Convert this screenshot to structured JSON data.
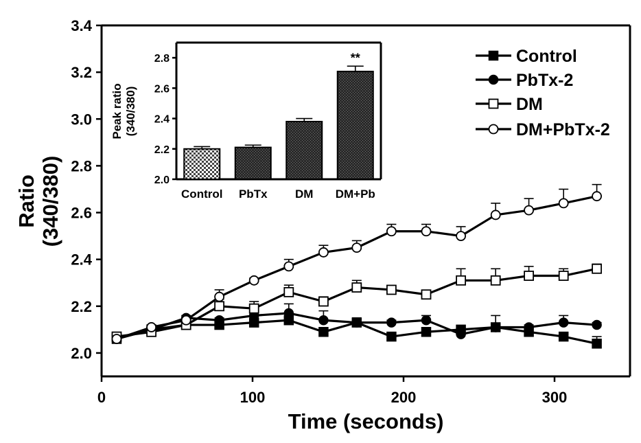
{
  "chart_data": [
    {
      "type": "line",
      "xlabel": "Time (seconds)",
      "ylabel_line1": "Ratio",
      "ylabel_line2": "(340/380)",
      "xlim": [
        0,
        350
      ],
      "ylim": [
        1.9,
        3.4
      ],
      "xticks": [
        0,
        100,
        200,
        300
      ],
      "xtick_labels": [
        "0",
        "100",
        "200",
        "300"
      ],
      "yticks": [
        2.0,
        2.2,
        2.4,
        2.6,
        2.8,
        3.0,
        3.2,
        3.4
      ],
      "ytick_labels": [
        "2.0",
        "2.2",
        "2.4",
        "2.6",
        "2.8",
        "3.0",
        "3.2",
        "3.4"
      ],
      "x": [
        10,
        33,
        56,
        78,
        101,
        124,
        147,
        169,
        192,
        215,
        238,
        261,
        283,
        306,
        328
      ],
      "series": [
        {
          "name": "Control",
          "marker": "filled-square",
          "values": [
            2.06,
            2.1,
            2.12,
            2.12,
            2.13,
            2.14,
            2.09,
            2.13,
            2.07,
            2.09,
            2.1,
            2.11,
            2.09,
            2.07,
            2.04
          ],
          "errors": [
            0.01,
            0.01,
            0.01,
            0.01,
            0.01,
            0.01,
            0.01,
            0.01,
            0.005,
            0.01,
            0.01,
            0.01,
            0.01,
            0.01,
            0.03
          ]
        },
        {
          "name": "PbTx-2",
          "marker": "filled-circle",
          "values": [
            2.06,
            2.1,
            2.15,
            2.14,
            2.16,
            2.17,
            2.14,
            2.13,
            2.13,
            2.14,
            2.08,
            2.11,
            2.11,
            2.13,
            2.12
          ],
          "errors": [
            0.01,
            0.01,
            0.01,
            0.01,
            0.02,
            0.04,
            0.04,
            0.02,
            0.01,
            0.02,
            0.02,
            0.05,
            0.01,
            0.03,
            0.01
          ]
        },
        {
          "name": "DM",
          "marker": "open-square",
          "values": [
            2.07,
            2.09,
            2.12,
            2.2,
            2.19,
            2.26,
            2.22,
            2.28,
            2.27,
            2.25,
            2.31,
            2.31,
            2.33,
            2.33,
            2.36
          ],
          "errors": [
            0.01,
            0.01,
            0.01,
            0.03,
            0.03,
            0.03,
            0.02,
            0.03,
            0.01,
            0.01,
            0.05,
            0.05,
            0.04,
            0.03,
            0.02
          ]
        },
        {
          "name": "DM+PbTx-2",
          "marker": "open-circle",
          "values": [
            2.06,
            2.11,
            2.14,
            2.24,
            2.31,
            2.37,
            2.43,
            2.45,
            2.52,
            2.52,
            2.5,
            2.59,
            2.61,
            2.64,
            2.67
          ],
          "errors": [
            0.01,
            0.01,
            0.01,
            0.03,
            0.01,
            0.03,
            0.03,
            0.03,
            0.03,
            0.03,
            0.04,
            0.05,
            0.05,
            0.06,
            0.05
          ]
        }
      ],
      "legend_position": "top-right"
    },
    {
      "type": "bar",
      "ylabel_line1": "Peak ratio",
      "ylabel_line2": "(340/380)",
      "categories": [
        "Control",
        "PbTx",
        "DM",
        "DM+Pb"
      ],
      "values": [
        2.2,
        2.21,
        2.38,
        2.71
      ],
      "errors": [
        0.015,
        0.015,
        0.02,
        0.035
      ],
      "fills": [
        "checker",
        "dark",
        "dark",
        "dark"
      ],
      "annotations": [
        "",
        "",
        "",
        "**"
      ],
      "ylim": [
        2.0,
        2.9
      ],
      "yticks": [
        2.0,
        2.2,
        2.4,
        2.6,
        2.8
      ],
      "ytick_labels": [
        "2.0",
        "2.2",
        "2.4",
        "2.6",
        "2.8"
      ],
      "legend_position": "inset-top-left"
    }
  ]
}
